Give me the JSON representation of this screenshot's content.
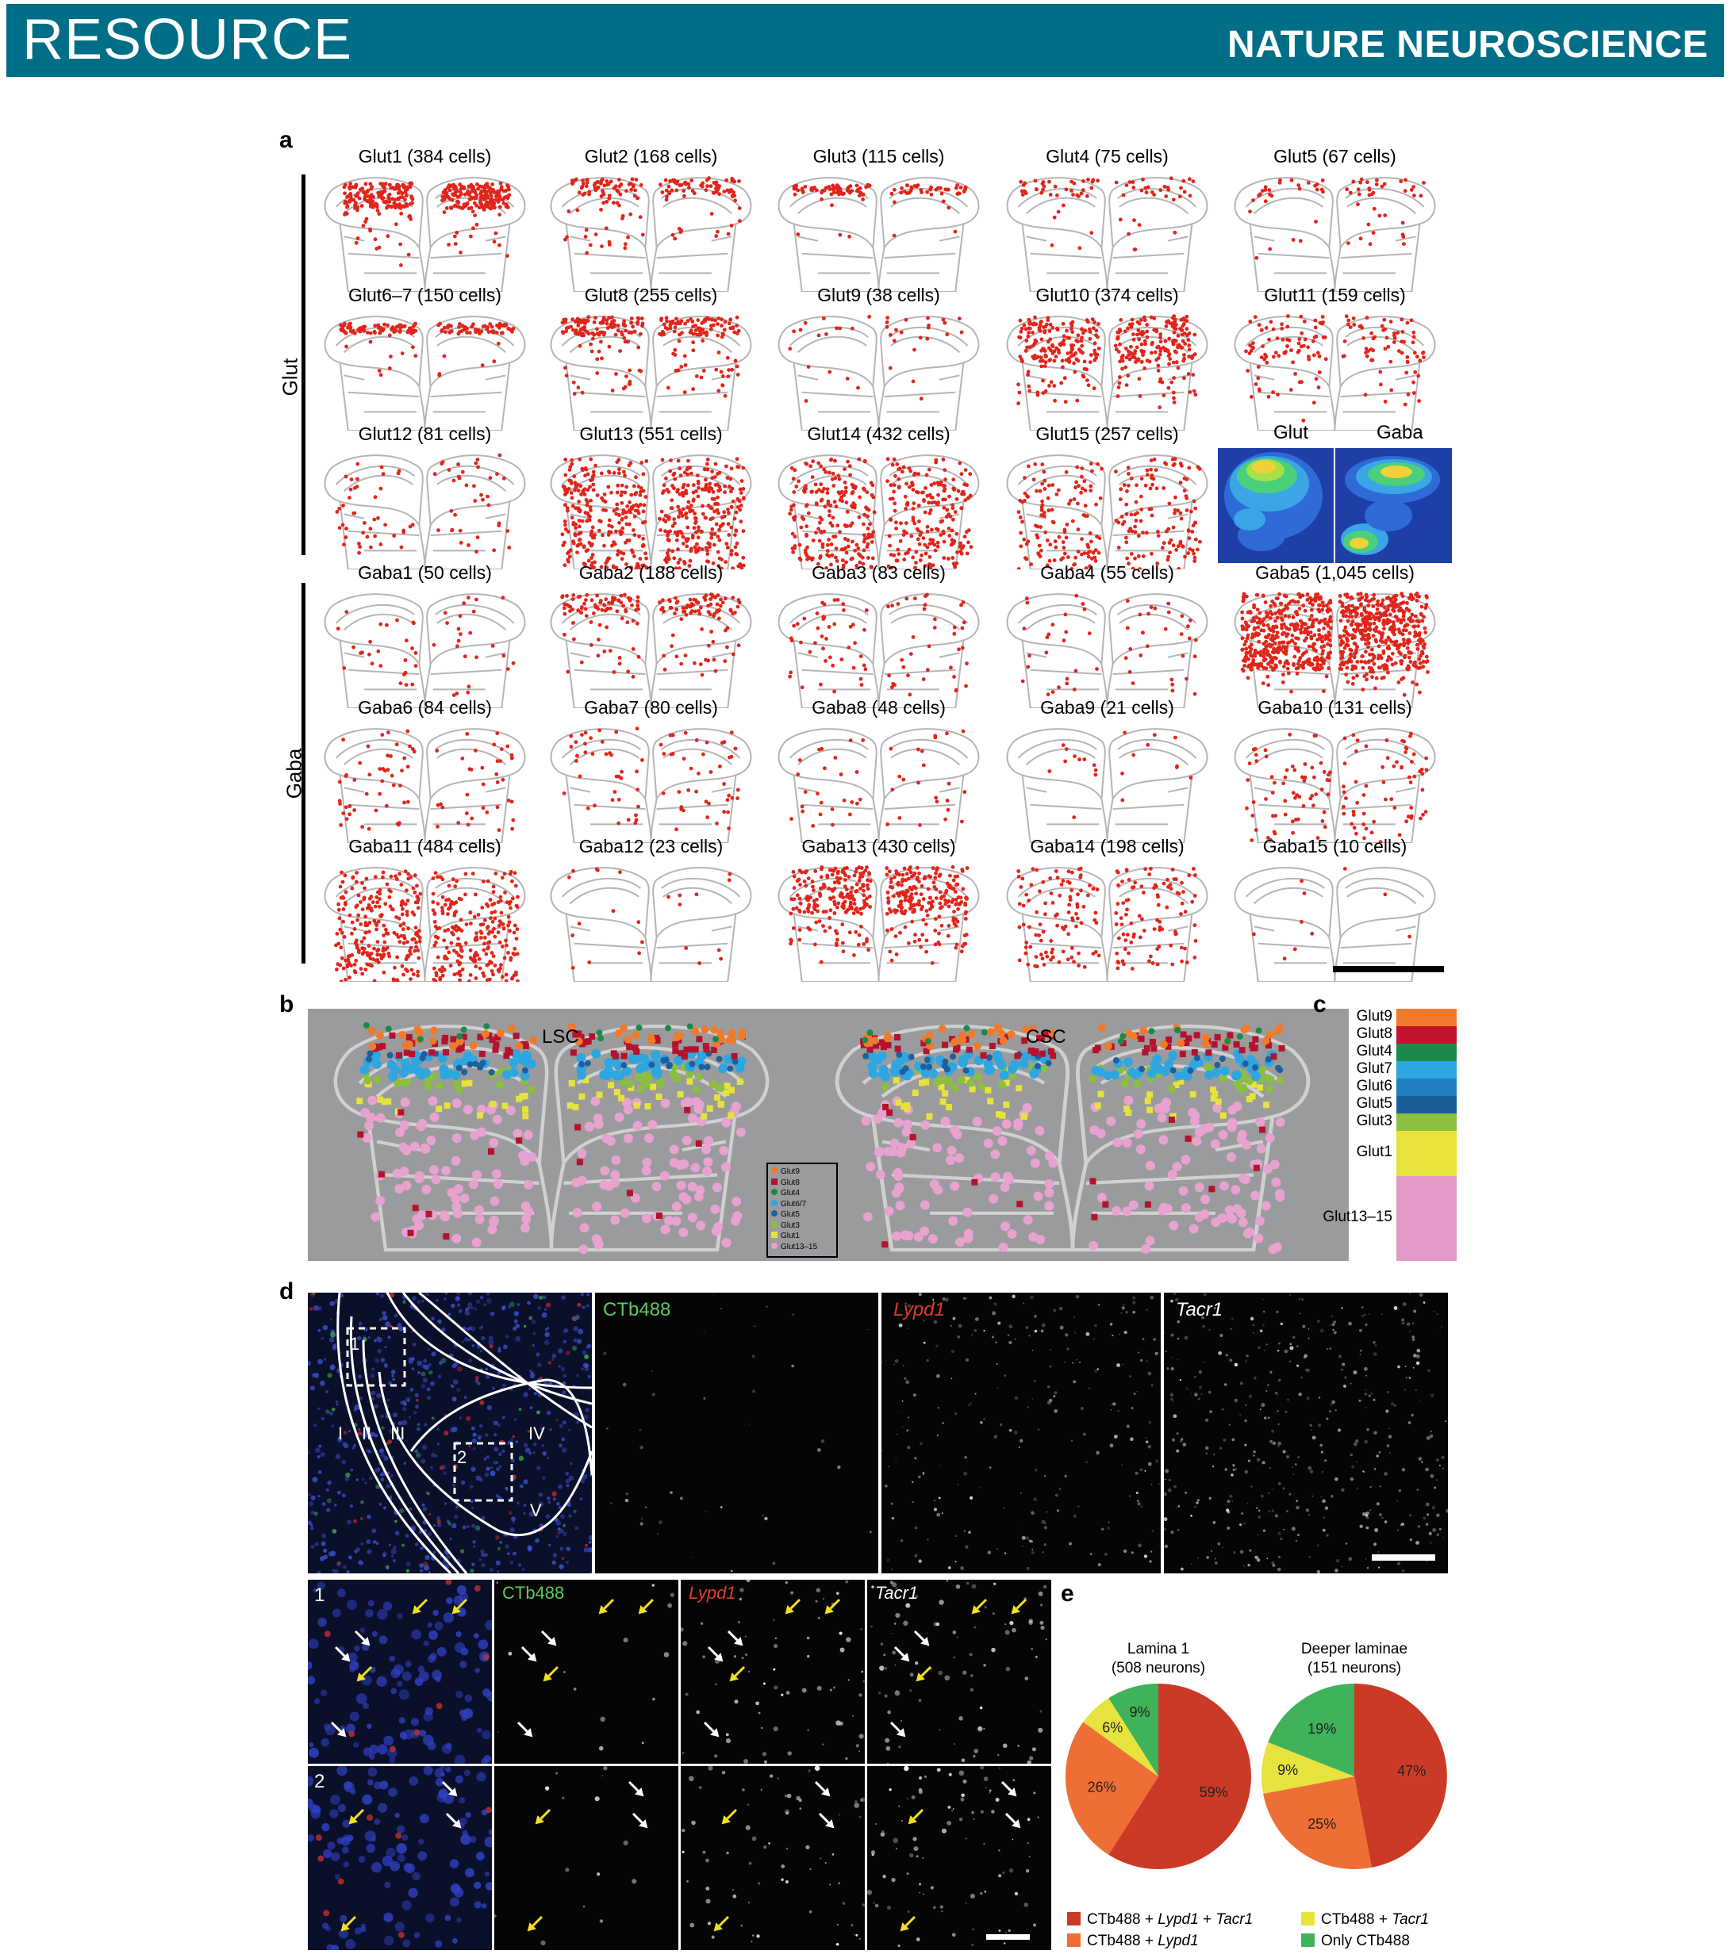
{
  "header": {
    "left": "RESOURCE",
    "right": "NATURE NEUROSCIENCE"
  },
  "panel_a": {
    "label": "a",
    "group_labels": [
      "Glut",
      "Gaba"
    ],
    "maps": [
      {
        "title": "Glut1 (384 cells)",
        "n": 384,
        "pattern": "dorsal-dense"
      },
      {
        "title": "Glut2 (168 cells)",
        "n": 168,
        "pattern": "dorsal-outer"
      },
      {
        "title": "Glut3 (115 cells)",
        "n": 115,
        "pattern": "dorsal-band"
      },
      {
        "title": "Glut4 (75 cells)",
        "n": 75,
        "pattern": "dorsal-outer"
      },
      {
        "title": "Glut5 (67 cells)",
        "n": 67,
        "pattern": "dorsal-outer"
      },
      {
        "title": "Glut6–7 (150 cells)",
        "n": 150,
        "pattern": "dorsal-band"
      },
      {
        "title": "Glut8 (255 cells)",
        "n": 255,
        "pattern": "dorsal-outer"
      },
      {
        "title": "Glut9 (38 cells)",
        "n": 38,
        "pattern": "dorsal-outer"
      },
      {
        "title": "Glut10 (374 cells)",
        "n": 374,
        "pattern": "dorsal-wide"
      },
      {
        "title": "Glut11 (159 cells)",
        "n": 159,
        "pattern": "dorsal-wide"
      },
      {
        "title": "Glut12 (81 cells)",
        "n": 81,
        "pattern": "scattered"
      },
      {
        "title": "Glut13 (551 cells)",
        "n": 551,
        "pattern": "ventral"
      },
      {
        "title": "Glut14 (432 cells)",
        "n": 432,
        "pattern": "ventral"
      },
      {
        "title": "Glut15 (257 cells)",
        "n": 257,
        "pattern": "ventral"
      },
      {
        "title": "",
        "n": 0,
        "pattern": "heatmap"
      },
      {
        "title": "Gaba1 (50 cells)",
        "n": 50,
        "pattern": "scattered"
      },
      {
        "title": "Gaba2 (188 cells)",
        "n": 188,
        "pattern": "dorsal-outer"
      },
      {
        "title": "Gaba3 (83 cells)",
        "n": 83,
        "pattern": "scattered"
      },
      {
        "title": "Gaba4 (55 cells)",
        "n": 55,
        "pattern": "scattered"
      },
      {
        "title": "Gaba5 (1,045 cells)",
        "n": 1045,
        "pattern": "dense-all"
      },
      {
        "title": "Gaba6 (84 cells)",
        "n": 84,
        "pattern": "scattered"
      },
      {
        "title": "Gaba7 (80 cells)",
        "n": 80,
        "pattern": "scattered"
      },
      {
        "title": "Gaba8 (48 cells)",
        "n": 48,
        "pattern": "scattered"
      },
      {
        "title": "Gaba9 (21 cells)",
        "n": 21,
        "pattern": "scattered"
      },
      {
        "title": "Gaba10 (131 cells)",
        "n": 131,
        "pattern": "ventral"
      },
      {
        "title": "Gaba11 (484 cells)",
        "n": 484,
        "pattern": "ventral"
      },
      {
        "title": "Gaba12 (23 cells)",
        "n": 23,
        "pattern": "scattered"
      },
      {
        "title": "Gaba13 (430 cells)",
        "n": 430,
        "pattern": "dorsal-wide"
      },
      {
        "title": "Gaba14 (198 cells)",
        "n": 198,
        "pattern": "scattered"
      },
      {
        "title": "Gaba15 (10 cells)",
        "n": 10,
        "pattern": "scattered"
      }
    ],
    "heatmap_labels": [
      "Glut",
      "Gaba"
    ]
  },
  "panel_b": {
    "label": "b",
    "region_labels": [
      "LSC",
      "CSC"
    ],
    "legend": [
      "Glut9",
      "Glut8",
      "Glut4",
      "Glut6/7",
      "Glut5",
      "Glut3",
      "Glut1",
      "Glut13–15"
    ]
  },
  "panel_c": {
    "label": "c",
    "entries": [
      {
        "name": "Glut9",
        "color": "#f07a2a",
        "h": 1
      },
      {
        "name": "Glut8",
        "color": "#c2122e",
        "h": 1
      },
      {
        "name": "Glut4",
        "color": "#1a8a4a",
        "h": 1
      },
      {
        "name": "Glut7",
        "color": "#2ea6e0",
        "h": 1
      },
      {
        "name": "Glut6",
        "color": "#1f7fc0",
        "h": 1
      },
      {
        "name": "Glut5",
        "color": "#1b5e99",
        "h": 1
      },
      {
        "name": "Glut3",
        "color": "#8cbe3f",
        "h": 1
      },
      {
        "name": "Glut1",
        "color": "#e7e33c",
        "h": 2.6
      },
      {
        "name": "Glut13–15",
        "color": "#e39ac6",
        "h": 4.9
      }
    ]
  },
  "panel_d": {
    "label": "d",
    "top_labels": [
      "CTb488",
      "Lypd1",
      "Tacr1"
    ],
    "laminae": [
      "I",
      "II",
      "III",
      "IV",
      "V"
    ],
    "boxes": [
      "1",
      "2"
    ],
    "row_labels": [
      "1",
      "2"
    ],
    "bottom_labels": [
      "CTb488",
      "Lypd1",
      "Tacr1"
    ]
  },
  "panel_e": {
    "label": "e",
    "chart_data": [
      {
        "type": "pie",
        "title": "Lamina 1",
        "subtitle": "(508 neurons)",
        "slices": [
          {
            "name": "CTb488 + Lypd1 + Tacr1",
            "value": 59,
            "label": "59%",
            "color": "#cb3a26"
          },
          {
            "name": "CTb488 + Lypd1",
            "value": 26,
            "label": "26%",
            "color": "#ee6f35"
          },
          {
            "name": "CTb488 + Tacr1",
            "value": 6,
            "label": "6%",
            "color": "#e6e33e"
          },
          {
            "name": "Only CTb488",
            "value": 9,
            "label": "9%",
            "color": "#3fb25a"
          }
        ]
      },
      {
        "type": "pie",
        "title": "Deeper laminae",
        "subtitle": "(151 neurons)",
        "slices": [
          {
            "name": "CTb488 + Lypd1 + Tacr1",
            "value": 47,
            "label": "47%",
            "color": "#cb3a26"
          },
          {
            "name": "CTb488 + Lypd1",
            "value": 25,
            "label": "25%",
            "color": "#ee6f35"
          },
          {
            "name": "CTb488 + Tacr1",
            "value": 9,
            "label": "9%",
            "color": "#e6e33e"
          },
          {
            "name": "Only CTb488",
            "value": 19,
            "label": "19%",
            "color": "#3fb25a"
          }
        ]
      }
    ],
    "legend": [
      {
        "a": "CTb488 + ",
        "b": "Lypd1",
        " c": "",
        "rest": " + Tacr1",
        "color": "#cb3a26"
      },
      {
        "a": "CTb488 + ",
        "b": "Tacr1",
        "rest": "",
        "color": "#e6e33e"
      },
      {
        "a": "CTb488 + ",
        "b": "Lypd1",
        "rest": "",
        "color": "#ee6f35"
      },
      {
        "a": "Only CTb488",
        "b": "",
        "rest": "",
        "color": "#3fb25a"
      }
    ]
  }
}
